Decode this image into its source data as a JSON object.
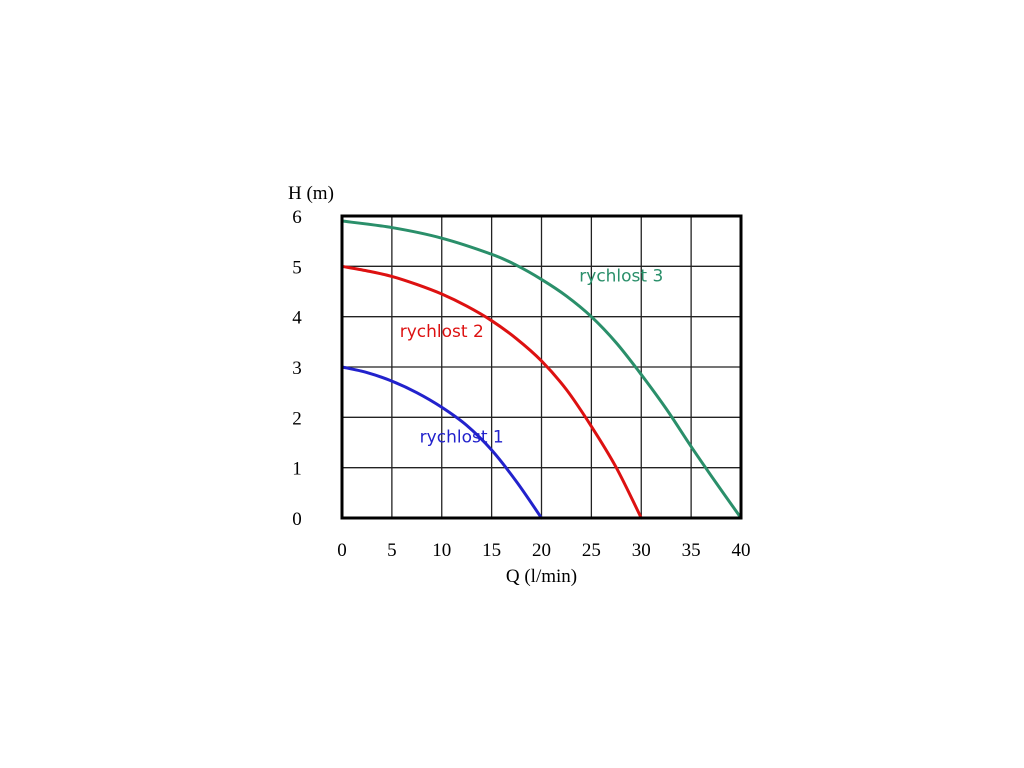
{
  "chart_data": {
    "type": "line",
    "title": "",
    "xlabel": "Q (l/min)",
    "ylabel": "H (m)",
    "xlim": [
      0,
      40
    ],
    "ylim": [
      0,
      6
    ],
    "xticks": [
      "0",
      "5",
      "10",
      "15",
      "20",
      "25",
      "30",
      "35",
      "40"
    ],
    "yticks": [
      "0",
      "1",
      "2",
      "3",
      "4",
      "5",
      "6"
    ],
    "grid": true,
    "legend": "none",
    "series": [
      {
        "name": "rychlost 1",
        "color": "#2222cc",
        "x": [
          0,
          2.5,
          5,
          7.5,
          10,
          12.5,
          15,
          17.5,
          20
        ],
        "y": [
          3.0,
          2.89,
          2.72,
          2.49,
          2.2,
          1.84,
          1.35,
          0.72,
          0.0
        ]
      },
      {
        "name": "rychlost 2",
        "color": "#dd1111",
        "x": [
          0,
          2.5,
          5,
          7.5,
          10,
          12.5,
          15,
          17.5,
          20,
          22.5,
          25,
          27.5,
          30
        ],
        "y": [
          5.0,
          4.91,
          4.8,
          4.64,
          4.45,
          4.21,
          3.92,
          3.56,
          3.12,
          2.55,
          1.82,
          1.0,
          0.0
        ]
      },
      {
        "name": "rychlost 3",
        "color": "#2a8f6a",
        "x": [
          0,
          5,
          10,
          15,
          17.5,
          20,
          22.5,
          25,
          27.5,
          30,
          32.5,
          35,
          37.5,
          40
        ],
        "y": [
          5.9,
          5.77,
          5.56,
          5.24,
          5.02,
          4.74,
          4.41,
          4.0,
          3.48,
          2.85,
          2.17,
          1.42,
          0.7,
          0.0
        ]
      }
    ],
    "annotations": [
      {
        "text": "rychlost 1",
        "series": 0,
        "x": 12.0,
        "y": 1.5
      },
      {
        "text": "rychlost 2",
        "series": 1,
        "x": 10.0,
        "y": 3.6
      },
      {
        "text": "rychlost 3",
        "series": 2,
        "x": 28.0,
        "y": 4.7
      }
    ]
  }
}
